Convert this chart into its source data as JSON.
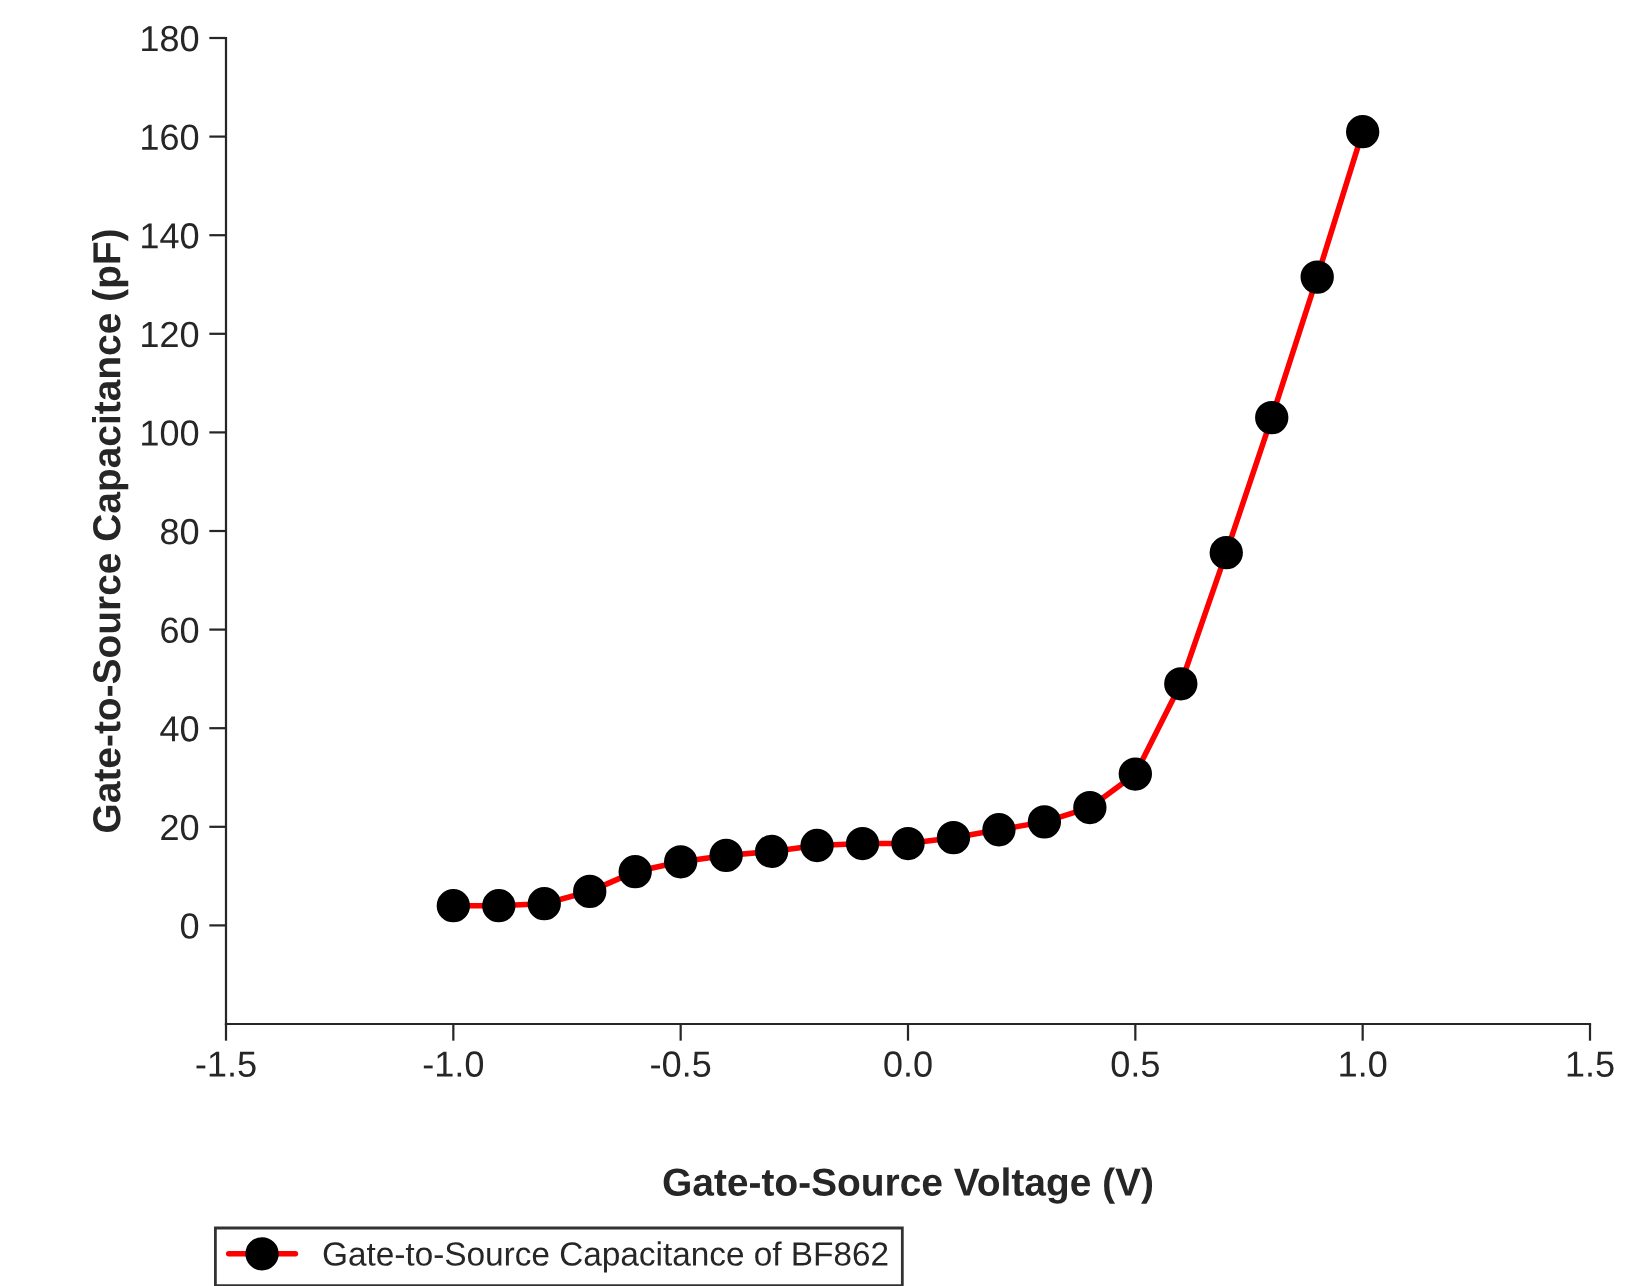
{
  "chart_data": {
    "type": "line",
    "xlabel": "Gate-to-Source Voltage (V)",
    "ylabel": "Gate-to-Source Capacitance (pF)",
    "x": [
      -1.0,
      -0.9,
      -0.8,
      -0.7,
      -0.6,
      -0.5,
      -0.4,
      -0.3,
      -0.2,
      -0.1,
      0.0,
      0.1,
      0.2,
      0.3,
      0.4,
      0.5,
      0.6,
      0.7,
      0.8,
      0.9,
      1.0
    ],
    "series": [
      {
        "name": "Gate-to-Source Capacitance of BF862",
        "color": "#ff0000",
        "values": [
          4.0,
          4.0,
          4.4,
          6.9,
          10.9,
          12.9,
          14.2,
          15.0,
          16.2,
          16.6,
          16.6,
          17.8,
          19.4,
          21.0,
          23.9,
          30.7,
          49.0,
          75.6,
          103.0,
          131.5,
          161.0
        ]
      }
    ],
    "xlim": [
      -1.5,
      1.5
    ],
    "xticks": [
      {
        "value": -1.5,
        "label": "-1.5"
      },
      {
        "value": -1.0,
        "label": "-1.0"
      },
      {
        "value": -0.5,
        "label": "-0.5"
      },
      {
        "value": 0.0,
        "label": "0.0"
      },
      {
        "value": 0.5,
        "label": "0.5"
      },
      {
        "value": 1.0,
        "label": "1.0"
      },
      {
        "value": 1.5,
        "label": "1.5"
      }
    ],
    "ylim": [
      -20,
      180
    ],
    "yticks": [
      0,
      20,
      40,
      60,
      80,
      100,
      120,
      140,
      160,
      180
    ],
    "marker": "circle",
    "line_style": "solid",
    "grid": false,
    "legend": "bottom left"
  }
}
